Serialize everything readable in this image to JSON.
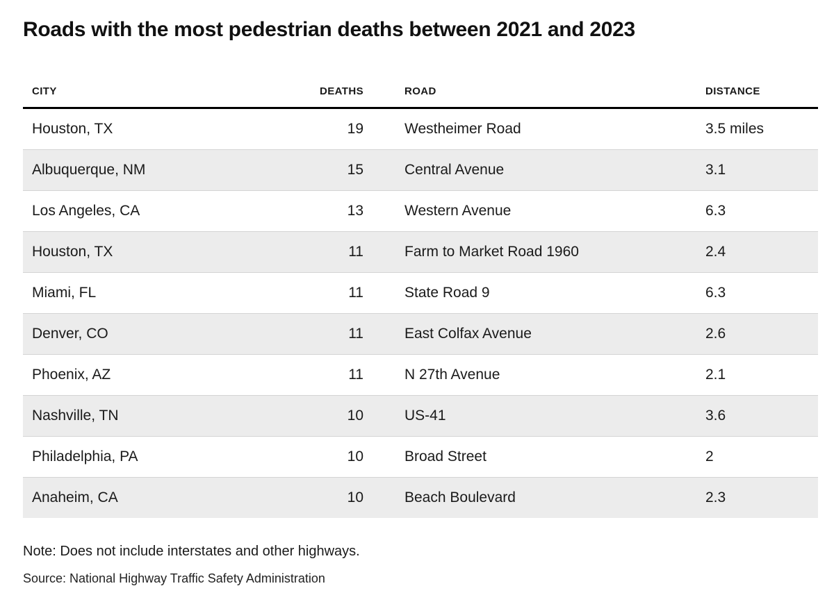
{
  "chart_data": {
    "type": "table",
    "title": "Roads with the most pedestrian deaths between 2021 and 2023",
    "columns": [
      "CITY",
      "DEATHS",
      "ROAD",
      "DISTANCE"
    ],
    "rows": [
      [
        "Houston, TX",
        19,
        "Westheimer Road",
        "3.5 miles"
      ],
      [
        "Albuquerque, NM",
        15,
        "Central Avenue",
        "3.1"
      ],
      [
        "Los Angeles, CA",
        13,
        "Western Avenue",
        "6.3"
      ],
      [
        "Houston, TX",
        11,
        "Farm to Market Road 1960",
        "2.4"
      ],
      [
        "Miami, FL",
        11,
        "State Road 9",
        "6.3"
      ],
      [
        "Denver, CO",
        11,
        "East Colfax Avenue",
        "2.6"
      ],
      [
        "Phoenix, AZ",
        11,
        "N 27th Avenue",
        "2.1"
      ],
      [
        "Nashville, TN",
        10,
        "US-41",
        "3.6"
      ],
      [
        "Philadelphia, PA",
        10,
        "Broad Street",
        "2"
      ],
      [
        "Anaheim, CA",
        10,
        "Beach Boulevard",
        "2.3"
      ]
    ],
    "note": "Note: Does not include interstates and other highways.",
    "source": "Source: National Highway Traffic Safety Administration",
    "layout": {
      "zebra_striping": true,
      "header_rule": "thick-black",
      "row_separator": "thin-gray"
    },
    "colors": {
      "background": "#ffffff",
      "text": "#1a1a1a",
      "row_alt_background": "#ececec",
      "row_separator": "#d4d4d4",
      "header_rule": "#000000"
    }
  }
}
